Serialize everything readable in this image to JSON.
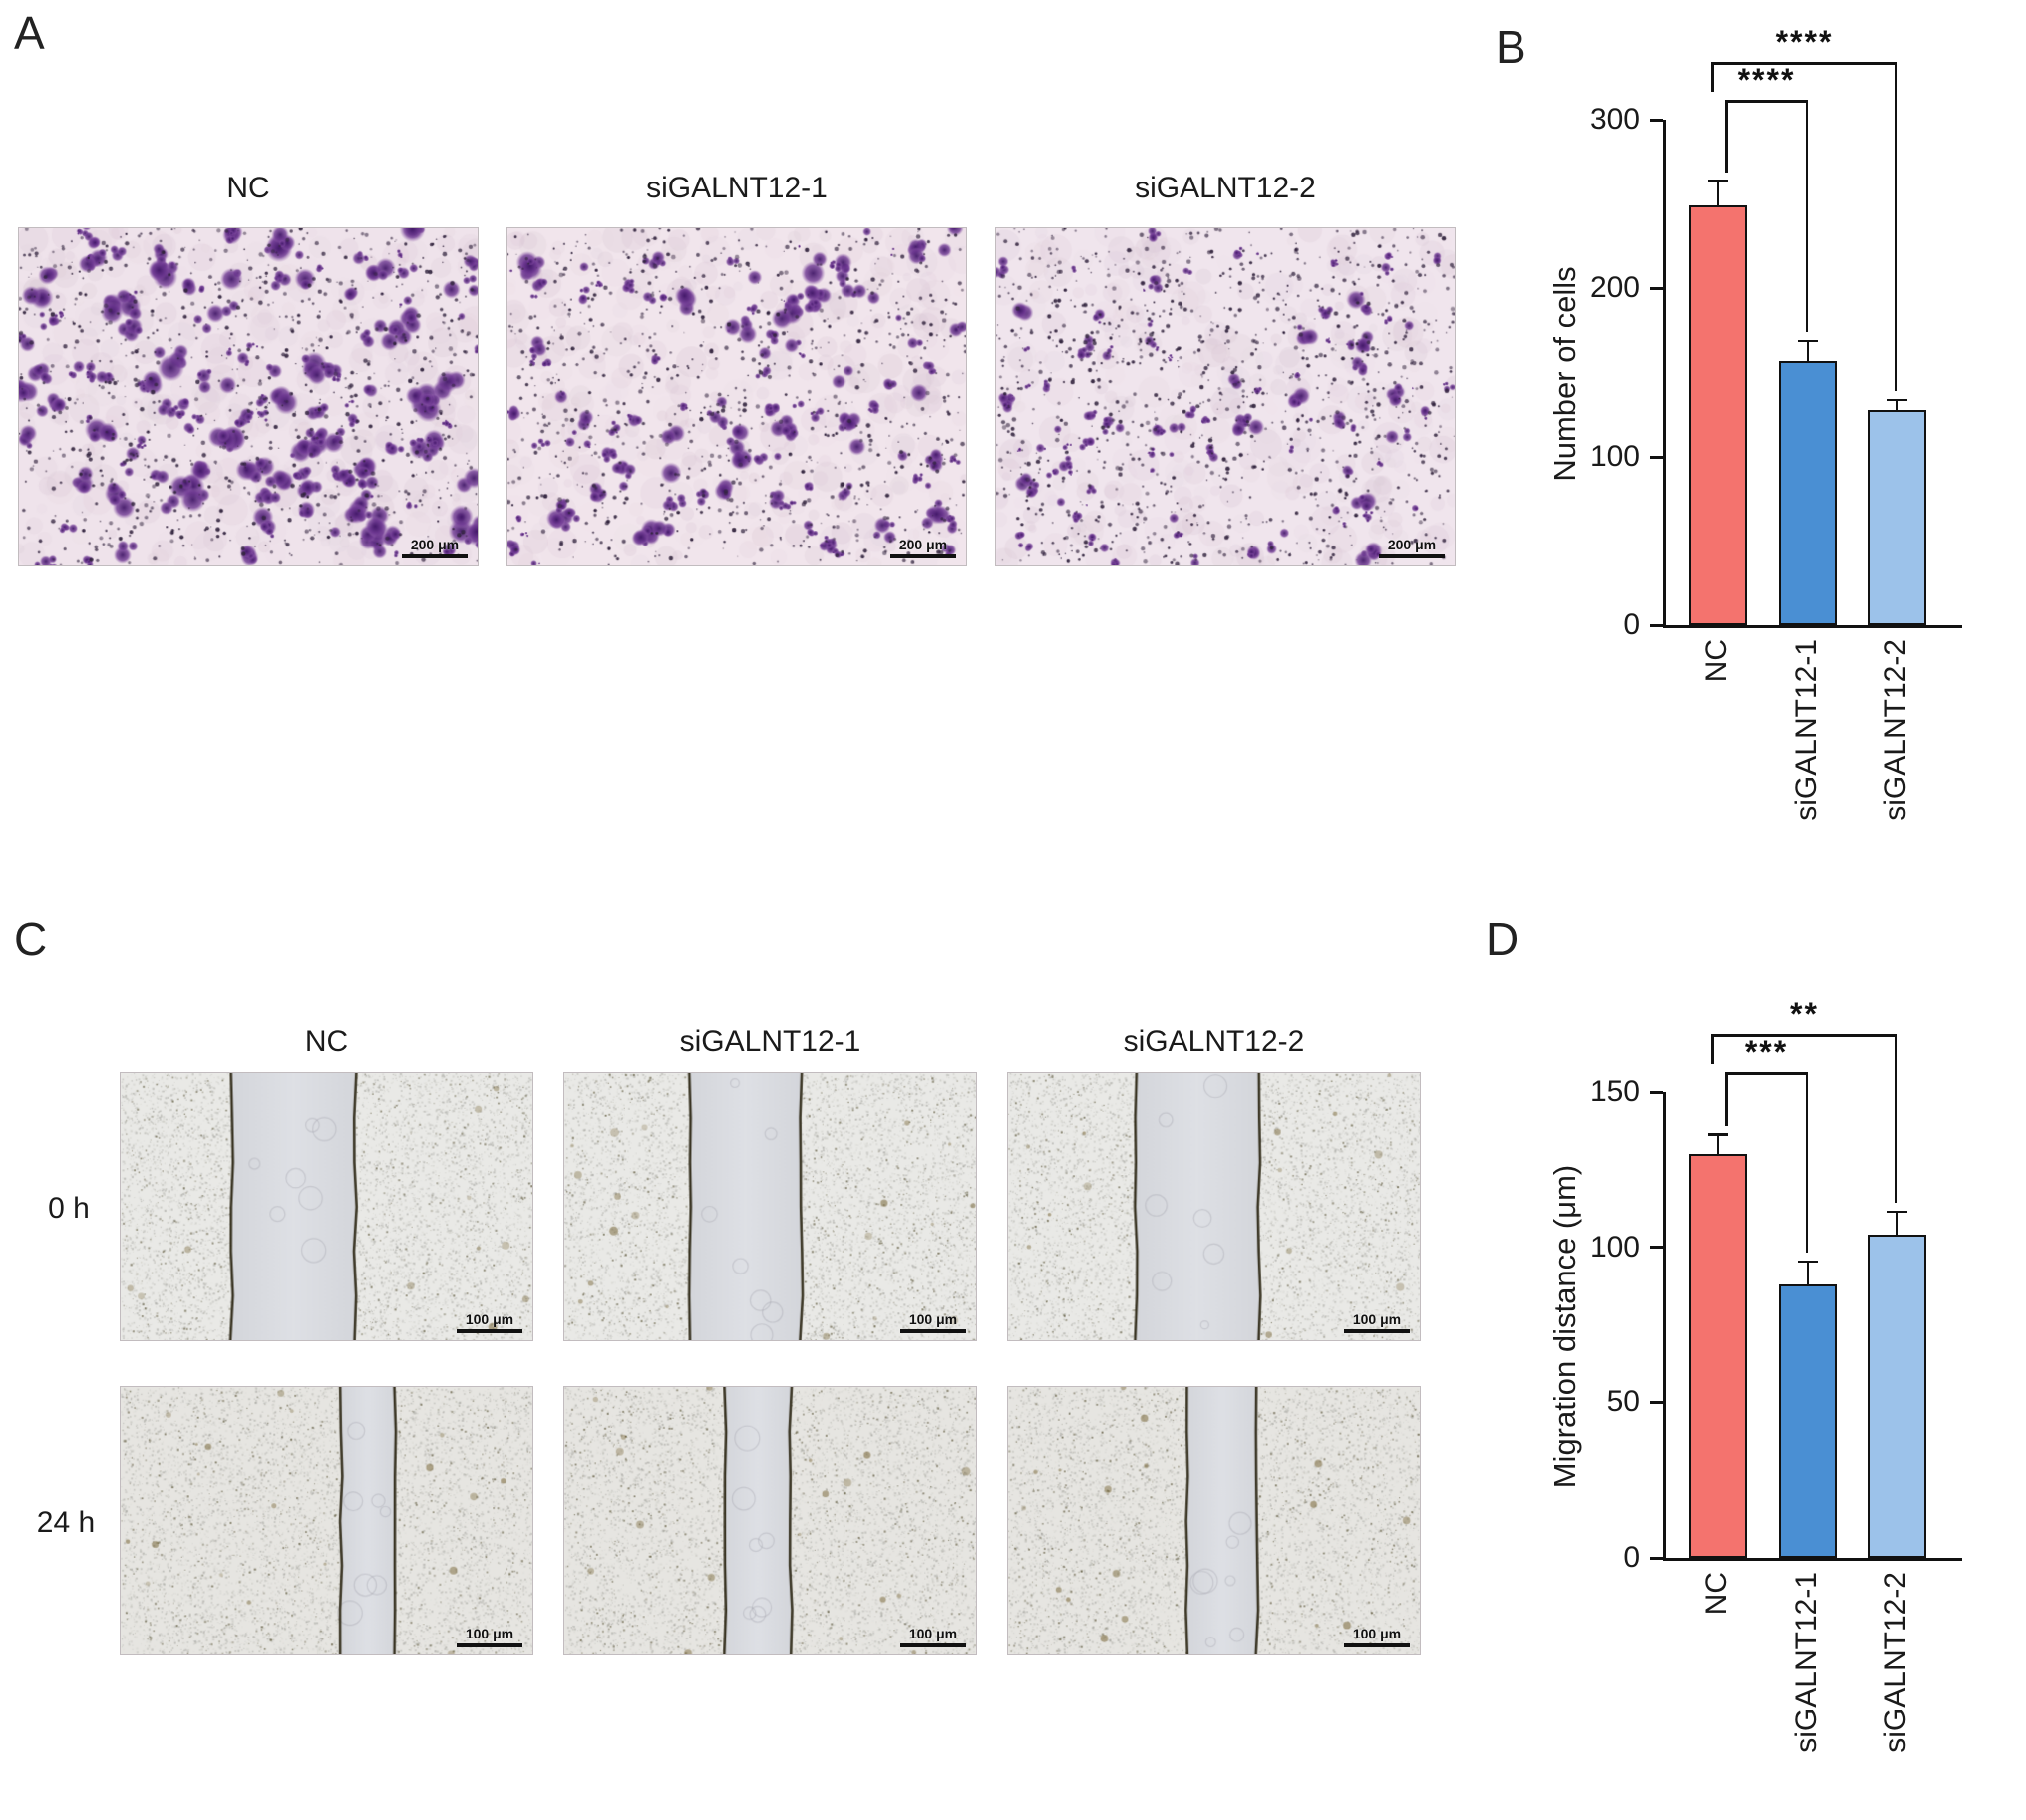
{
  "figure": {
    "panels": {
      "A": {
        "label": "A",
        "columns": [
          "NC",
          "siGALNT12-1",
          "siGALNT12-2"
        ],
        "scale_label": "200 μm"
      },
      "B": {
        "label": "B"
      },
      "C": {
        "label": "C",
        "columns": [
          "NC",
          "siGALNT12-1",
          "siGALNT12-2"
        ],
        "rows": [
          "0 h",
          "24 h"
        ],
        "scale_label": "100 μm"
      },
      "D": {
        "label": "D"
      }
    }
  },
  "chart_data": [
    {
      "id": "B",
      "type": "bar",
      "categories": [
        "NC",
        "siGALNT12-1",
        "siGALNT12-2"
      ],
      "values": [
        249,
        157,
        128
      ],
      "errors": [
        14,
        11,
        5
      ],
      "bar_colors": [
        "#f4736e",
        "#4a8fd3",
        "#9cc2ea"
      ],
      "title": "",
      "xlabel": "",
      "ylabel": "Number of cells",
      "ylim": [
        0,
        300
      ],
      "yticks": [
        0,
        100,
        200,
        300
      ],
      "grid": false,
      "legend": "none",
      "significance": [
        {
          "from": 0,
          "to": 1,
          "label": "****"
        },
        {
          "from": 0,
          "to": 2,
          "label": "****"
        }
      ]
    },
    {
      "id": "D",
      "type": "bar",
      "categories": [
        "NC",
        "siGALNT12-1",
        "siGALNT12-2"
      ],
      "values": [
        130,
        88,
        104
      ],
      "errors": [
        6,
        7,
        7
      ],
      "bar_colors": [
        "#f4736e",
        "#4a8fd3",
        "#9cc2ea"
      ],
      "title": "",
      "xlabel": "",
      "ylabel": "Migration distance (μm)",
      "ylim": [
        0,
        150
      ],
      "yticks": [
        0,
        50,
        100,
        150
      ],
      "grid": false,
      "legend": "none",
      "significance": [
        {
          "from": 0,
          "to": 1,
          "label": "***"
        },
        {
          "from": 0,
          "to": 2,
          "label": "**"
        }
      ]
    }
  ]
}
